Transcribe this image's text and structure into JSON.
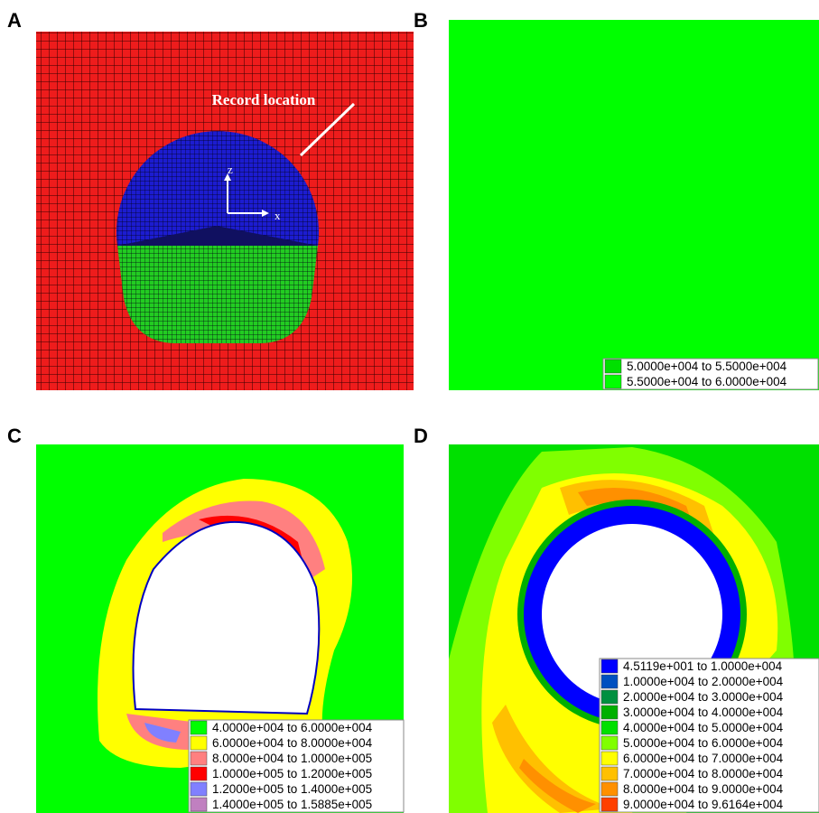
{
  "panels": [
    {
      "label": "A",
      "annotation": "Record location",
      "axes": [
        "z",
        "x"
      ]
    },
    {
      "label": "B",
      "legend": [
        {
          "color": "#00e000",
          "label": "5.0000e+004 to 5.5000e+004"
        },
        {
          "color": "#00ff00",
          "label": "5.5000e+004 to 6.0000e+004"
        }
      ]
    },
    {
      "label": "C",
      "legend": [
        {
          "color": "#00ff00",
          "label": "4.0000e+004 to 6.0000e+004"
        },
        {
          "color": "#ffff00",
          "label": "6.0000e+004 to 8.0000e+004"
        },
        {
          "color": "#ff8080",
          "label": "8.0000e+004 to 1.0000e+005"
        },
        {
          "color": "#ff0000",
          "label": "1.0000e+005 to 1.2000e+005"
        },
        {
          "color": "#8080ff",
          "label": "1.2000e+005 to 1.4000e+005"
        },
        {
          "color": "#c080c0",
          "label": "1.4000e+005 to 1.5885e+005"
        }
      ]
    },
    {
      "label": "D",
      "legend": [
        {
          "color": "#0000ff",
          "label": "4.5119e+001 to 1.0000e+004"
        },
        {
          "color": "#0050c0",
          "label": "1.0000e+004 to 2.0000e+004"
        },
        {
          "color": "#009040",
          "label": "2.0000e+004 to 3.0000e+004"
        },
        {
          "color": "#00b000",
          "label": "3.0000e+004 to 4.0000e+004"
        },
        {
          "color": "#00e000",
          "label": "4.0000e+004 to 5.0000e+004"
        },
        {
          "color": "#80ff00",
          "label": "5.0000e+004 to 6.0000e+004"
        },
        {
          "color": "#ffff00",
          "label": "6.0000e+004 to 7.0000e+004"
        },
        {
          "color": "#ffc000",
          "label": "7.0000e+004 to 8.0000e+004"
        },
        {
          "color": "#ff9000",
          "label": "8.0000e+004 to 9.0000e+004"
        },
        {
          "color": "#ff4000",
          "label": "9.0000e+004 to 9.6164e+004"
        }
      ]
    }
  ]
}
